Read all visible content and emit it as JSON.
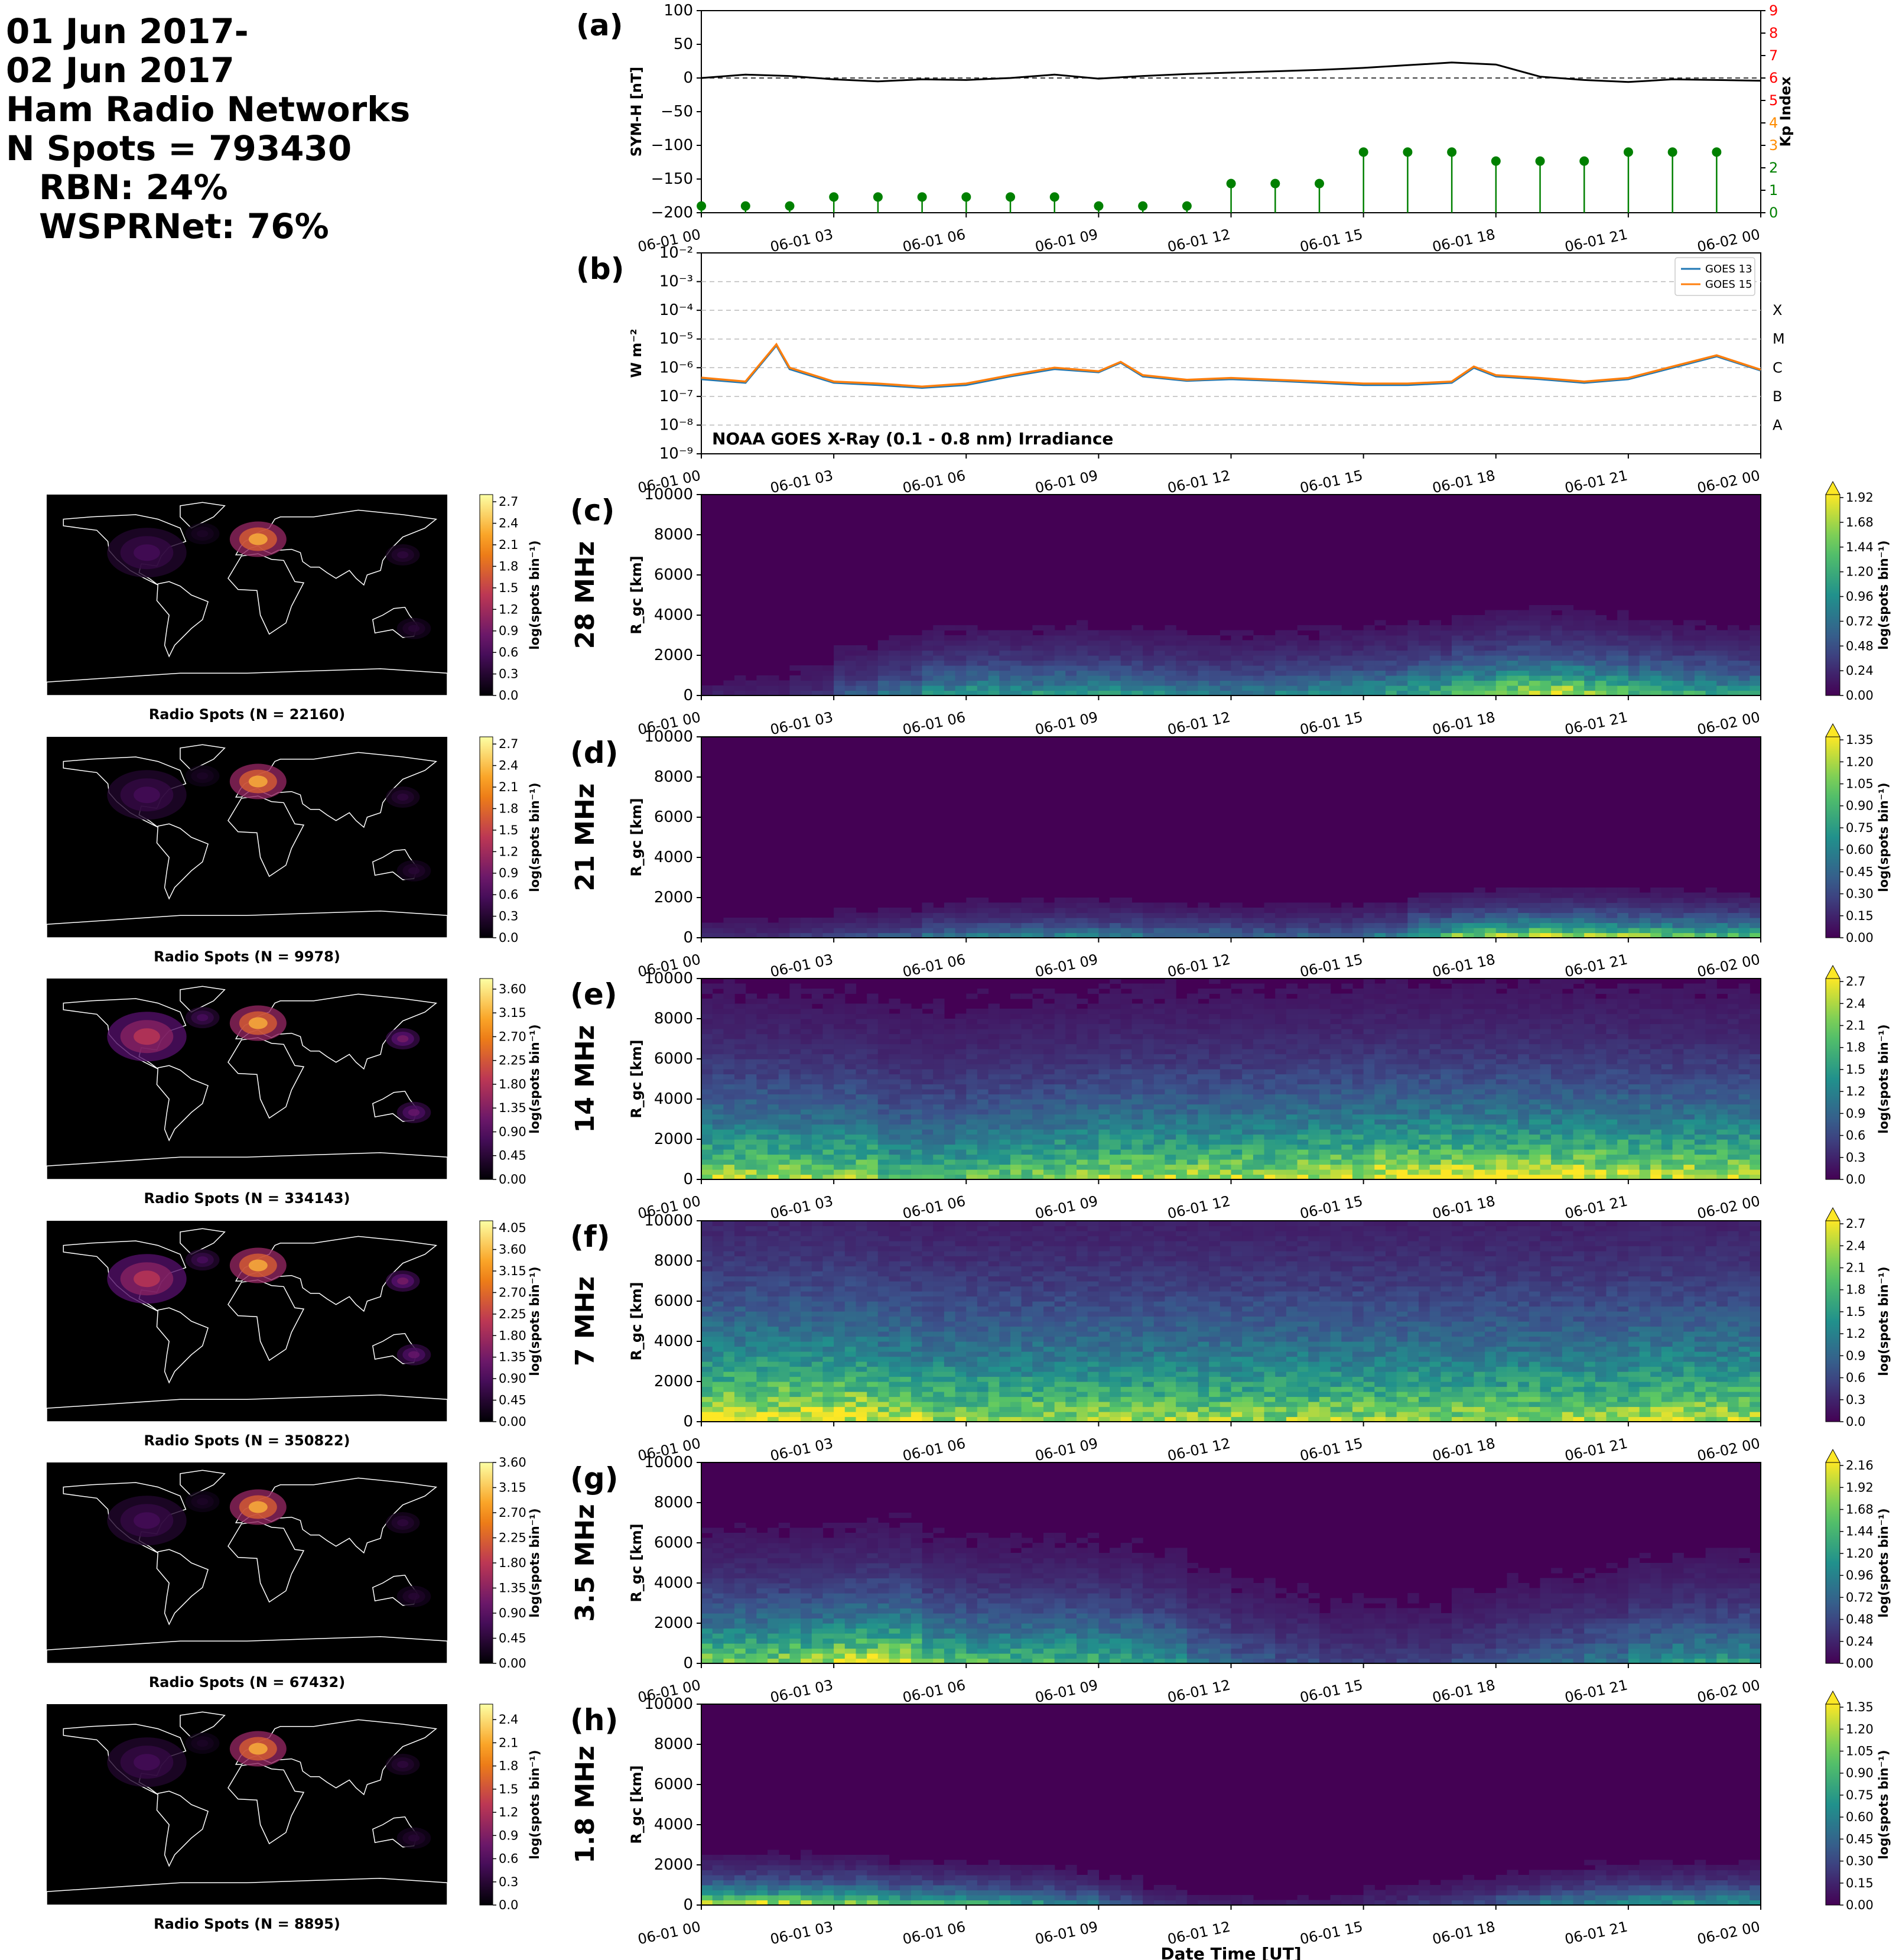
{
  "header": {
    "line1": "01 Jun 2017-",
    "line2": "02 Jun 2017",
    "line3": "Ham Radio Networks",
    "line4": "N Spots = 793430",
    "line5": "RBN: 24%",
    "line6": "WSPRNet: 76%"
  },
  "colors": {
    "symh_line": "#000000",
    "kp_stem": "#008000",
    "kp_axis": "#ff0000",
    "goes13": "#1f77b4",
    "goes15": "#ff7f0e",
    "map_bg": "#000000",
    "coast": "#ffffff"
  },
  "chart_data": [
    {
      "id": "a",
      "type": "line",
      "panel_label": "(a)",
      "xlabel": "",
      "x_ticks": [
        "06-01 00",
        "06-01 03",
        "06-01 06",
        "06-01 09",
        "06-01 12",
        "06-01 15",
        "06-01 18",
        "06-01 21",
        "06-02 00"
      ],
      "ylabel": "SYM-H [nT]",
      "ylim": [
        -200,
        100
      ],
      "y_ticks": [
        "100",
        "50",
        "0",
        "−50",
        "−100",
        "−150",
        "−200"
      ],
      "y2label": "Kp Index",
      "y2lim": [
        0,
        9
      ],
      "y2_ticks": [
        "0",
        "1",
        "2",
        "3",
        "4",
        "5",
        "6",
        "7",
        "8",
        "9"
      ],
      "series": [
        {
          "type": "line",
          "x_hours": [
            0,
            1,
            2,
            3,
            4,
            5,
            6,
            7,
            8,
            9,
            10,
            11,
            12,
            13,
            14,
            15,
            16,
            17,
            18,
            19,
            20,
            21,
            22,
            23,
            24
          ],
          "values": [
            0,
            5,
            3,
            -2,
            -5,
            -2,
            -3,
            0,
            5,
            -1,
            3,
            6,
            8,
            10,
            12,
            15,
            19,
            23,
            20,
            2,
            -3,
            -6,
            -2,
            -3,
            -4
          ]
        },
        {
          "type": "stem",
          "name": "Kp",
          "x_hours": [
            0,
            1,
            2,
            3,
            4,
            5,
            6,
            7,
            8,
            9,
            10,
            11,
            12,
            13,
            14,
            15,
            16,
            17,
            18,
            19,
            20,
            21,
            22,
            23
          ],
          "values": [
            0.3,
            0.3,
            0.3,
            0.7,
            0.7,
            0.7,
            0.7,
            0.7,
            0.7,
            0.3,
            0.3,
            0.3,
            1.3,
            1.3,
            1.3,
            2.7,
            2.7,
            2.7,
            2.3,
            2.3,
            2.3,
            2.7,
            2.7,
            2.7
          ]
        }
      ]
    },
    {
      "id": "b",
      "type": "line",
      "panel_label": "(b)",
      "x_ticks": [
        "06-01 00",
        "06-01 03",
        "06-01 06",
        "06-01 09",
        "06-01 12",
        "06-01 15",
        "06-01 18",
        "06-01 21",
        "06-02 00"
      ],
      "ylabel": "W m⁻²",
      "yscale": "log",
      "ylim": [
        1e-09,
        0.01
      ],
      "y_ticks": [
        "10⁻²",
        "10⁻³",
        "10⁻⁴",
        "10⁻⁵",
        "10⁻⁶",
        "10⁻⁷",
        "10⁻⁸",
        "10⁻⁹"
      ],
      "flare_classes": [
        "X",
        "M",
        "C",
        "B",
        "A"
      ],
      "annotation": "NOAA GOES X-Ray (0.1 - 0.8 nm) Irradiance",
      "legend_position": "top-right",
      "series": [
        {
          "name": "GOES 13",
          "x_hours": [
            0,
            1,
            1.7,
            2,
            3,
            4,
            5,
            6,
            7,
            8,
            9,
            9.5,
            10,
            11,
            12,
            13,
            14,
            15,
            16,
            17,
            17.5,
            18,
            19,
            20,
            21,
            22,
            23,
            24
          ],
          "values": [
            4e-07,
            3e-07,
            6e-06,
            9e-07,
            3e-07,
            2.5e-07,
            2e-07,
            2.5e-07,
            5e-07,
            9e-07,
            7e-07,
            1.5e-06,
            5e-07,
            3.5e-07,
            4e-07,
            3.5e-07,
            3e-07,
            2.5e-07,
            2.5e-07,
            3e-07,
            1e-06,
            5e-07,
            4e-07,
            3e-07,
            4e-07,
            1e-06,
            2.5e-06,
            8e-07
          ]
        },
        {
          "name": "GOES 15",
          "x_hours": [
            0,
            1,
            1.7,
            2,
            3,
            4,
            5,
            6,
            7,
            8,
            9,
            9.5,
            10,
            11,
            12,
            13,
            14,
            15,
            16,
            17,
            17.5,
            18,
            19,
            20,
            21,
            22,
            23,
            24
          ],
          "values": [
            4.5e-07,
            3.3e-07,
            6.5e-06,
            1e-06,
            3.3e-07,
            2.8e-07,
            2.2e-07,
            2.8e-07,
            5.5e-07,
            1e-06,
            7.5e-07,
            1.6e-06,
            5.5e-07,
            3.8e-07,
            4.4e-07,
            3.8e-07,
            3.3e-07,
            2.8e-07,
            2.8e-07,
            3.3e-07,
            1.1e-06,
            5.5e-07,
            4.4e-07,
            3.3e-07,
            4.4e-07,
            1.1e-06,
            2.7e-06,
            8.5e-07
          ]
        }
      ]
    },
    {
      "id": "c",
      "type": "heatmap",
      "panel_label": "(c)",
      "band": "28 MHz",
      "ylabel": "R_gc [km]",
      "ylim": [
        0,
        10000
      ],
      "y_ticks": [
        "0",
        "2000",
        "4000",
        "6000",
        "8000",
        "10000"
      ],
      "x_ticks": [
        "06-01 00",
        "06-01 03",
        "06-01 06",
        "06-01 09",
        "06-01 12",
        "06-01 15",
        "06-01 18",
        "06-01 21",
        "06-02 00"
      ],
      "colorbar_label": "log(spots bin⁻¹)",
      "colorbar_ticks": [
        "0.00",
        "0.24",
        "0.48",
        "0.72",
        "0.96",
        "1.20",
        "1.44",
        "1.68",
        "1.92"
      ],
      "vmax": 1.92,
      "map_caption": "Radio Spots (N = 22160)",
      "map_colorbar_ticks": [
        "0.0",
        "0.3",
        "0.6",
        "0.9",
        "1.2",
        "1.5",
        "1.8",
        "2.1",
        "2.4",
        "2.7"
      ],
      "map_vmax": 2.8,
      "activity": [
        0.1,
        0.1,
        0.15,
        0.3,
        0.4,
        0.55,
        0.6,
        0.55,
        0.6,
        0.55,
        0.5,
        0.45,
        0.45,
        0.5,
        0.55,
        0.6,
        0.7,
        0.85,
        1.0,
        1.0,
        0.9,
        0.75,
        0.65,
        0.6
      ],
      "range_scale_km": 1500,
      "spots": [
        {
          "hours": 16,
          "km": 0,
          "weight": 0
        }
      ]
    },
    {
      "id": "d",
      "type": "heatmap",
      "panel_label": "(d)",
      "band": "21 MHz",
      "ylabel": "R_gc [km]",
      "ylim": [
        0,
        10000
      ],
      "y_ticks": [
        "0",
        "2000",
        "4000",
        "6000",
        "8000",
        "10000"
      ],
      "x_ticks": [
        "06-01 00",
        "06-01 03",
        "06-01 06",
        "06-01 09",
        "06-01 12",
        "06-01 15",
        "06-01 18",
        "06-01 21",
        "06-02 00"
      ],
      "colorbar_label": "log(spots bin⁻¹)",
      "colorbar_ticks": [
        "0.00",
        "0.15",
        "0.30",
        "0.45",
        "0.60",
        "0.75",
        "0.90",
        "1.05",
        "1.20",
        "1.35"
      ],
      "vmax": 1.35,
      "map_caption": "Radio Spots (N = 9978)",
      "map_colorbar_ticks": [
        "0.0",
        "0.3",
        "0.6",
        "0.9",
        "1.2",
        "1.5",
        "1.8",
        "2.1",
        "2.4",
        "2.7"
      ],
      "map_vmax": 2.8,
      "activity": [
        0.15,
        0.15,
        0.2,
        0.25,
        0.3,
        0.4,
        0.45,
        0.45,
        0.5,
        0.45,
        0.4,
        0.4,
        0.35,
        0.35,
        0.35,
        0.45,
        0.7,
        0.9,
        1.0,
        0.95,
        0.9,
        0.85,
        0.8,
        0.75
      ],
      "range_scale_km": 900,
      "spots": []
    },
    {
      "id": "e",
      "type": "heatmap",
      "panel_label": "(e)",
      "band": "14 MHz",
      "ylabel": "R_gc [km]",
      "ylim": [
        0,
        10000
      ],
      "y_ticks": [
        "0",
        "2000",
        "4000",
        "6000",
        "8000",
        "10000"
      ],
      "x_ticks": [
        "06-01 00",
        "06-01 03",
        "06-01 06",
        "06-01 09",
        "06-01 12",
        "06-01 15",
        "06-01 18",
        "06-01 21",
        "06-02 00"
      ],
      "colorbar_label": "log(spots bin⁻¹)",
      "colorbar_ticks": [
        "0.0",
        "0.3",
        "0.6",
        "0.9",
        "1.2",
        "1.5",
        "1.8",
        "2.1",
        "2.4",
        "2.7"
      ],
      "vmax": 2.7,
      "map_caption": "Radio Spots (N = 334143)",
      "map_colorbar_ticks": [
        "0.00",
        "0.45",
        "0.90",
        "1.35",
        "1.80",
        "2.25",
        "2.70",
        "3.15",
        "3.60"
      ],
      "map_vmax": 3.8,
      "activity": [
        0.9,
        0.9,
        0.85,
        0.85,
        0.7,
        0.7,
        0.75,
        0.8,
        0.85,
        0.9,
        0.9,
        0.9,
        0.9,
        0.95,
        0.95,
        1.0,
        1.0,
        1.0,
        1.0,
        1.0,
        1.0,
        0.95,
        0.95,
        0.95
      ],
      "range_scale_km": 3500,
      "spots": []
    },
    {
      "id": "f",
      "type": "heatmap",
      "panel_label": "(f)",
      "band": "7 MHz",
      "ylabel": "R_gc [km]",
      "ylim": [
        0,
        10000
      ],
      "y_ticks": [
        "0",
        "2000",
        "4000",
        "6000",
        "8000",
        "10000"
      ],
      "x_ticks": [
        "06-01 00",
        "06-01 03",
        "06-01 06",
        "06-01 09",
        "06-01 12",
        "06-01 15",
        "06-01 18",
        "06-01 21",
        "06-02 00"
      ],
      "colorbar_label": "log(spots bin⁻¹)",
      "colorbar_ticks": [
        "0.0",
        "0.3",
        "0.6",
        "0.9",
        "1.2",
        "1.5",
        "1.8",
        "2.1",
        "2.4",
        "2.7"
      ],
      "vmax": 2.7,
      "map_caption": "Radio Spots (N = 350822)",
      "map_colorbar_ticks": [
        "0.00",
        "0.45",
        "0.90",
        "1.35",
        "1.80",
        "2.25",
        "2.70",
        "3.15",
        "3.60",
        "4.05"
      ],
      "map_vmax": 4.2,
      "activity": [
        1.0,
        1.0,
        1.0,
        1.0,
        0.9,
        0.85,
        0.85,
        0.85,
        0.85,
        0.85,
        0.85,
        0.85,
        0.85,
        0.85,
        0.85,
        0.85,
        0.85,
        0.85,
        0.85,
        0.85,
        0.85,
        0.9,
        0.9,
        0.9
      ],
      "range_scale_km": 4500,
      "spots": []
    },
    {
      "id": "g",
      "type": "heatmap",
      "panel_label": "(g)",
      "band": "3.5 MHz",
      "ylabel": "R_gc [km]",
      "ylim": [
        0,
        10000
      ],
      "y_ticks": [
        "0",
        "2000",
        "4000",
        "6000",
        "8000",
        "10000"
      ],
      "x_ticks": [
        "06-01 00",
        "06-01 03",
        "06-01 06",
        "06-01 09",
        "06-01 12",
        "06-01 15",
        "06-01 18",
        "06-01 21",
        "06-02 00"
      ],
      "colorbar_label": "log(spots bin⁻¹)",
      "colorbar_ticks": [
        "0.00",
        "0.24",
        "0.48",
        "0.72",
        "0.96",
        "1.20",
        "1.44",
        "1.68",
        "1.92",
        "2.16"
      ],
      "vmax": 2.16,
      "map_caption": "Radio Spots (N = 67432)",
      "map_colorbar_ticks": [
        "0.00",
        "0.45",
        "0.90",
        "1.35",
        "1.80",
        "2.25",
        "2.70",
        "3.15",
        "3.60"
      ],
      "map_vmax": 3.6,
      "activity": [
        0.85,
        0.85,
        0.9,
        1.0,
        1.0,
        0.75,
        0.7,
        0.7,
        0.7,
        0.65,
        0.55,
        0.4,
        0.3,
        0.25,
        0.2,
        0.2,
        0.2,
        0.25,
        0.3,
        0.35,
        0.4,
        0.5,
        0.55,
        0.55
      ],
      "range_scale_km": 2500,
      "spots": []
    },
    {
      "id": "h",
      "type": "heatmap",
      "panel_label": "(h)",
      "band": "1.8 MHz",
      "ylabel": "R_gc [km]",
      "ylim": [
        0,
        10000
      ],
      "y_ticks": [
        "0",
        "2000",
        "4000",
        "6000",
        "8000",
        "10000"
      ],
      "x_ticks": [
        "06-01 00",
        "06-01 03",
        "06-01 06",
        "06-01 09",
        "06-01 12",
        "06-01 15",
        "06-01 18",
        "06-01 21",
        "06-02 00"
      ],
      "xlabel": "Date Time [UT]",
      "colorbar_label": "log(spots bin⁻¹)",
      "colorbar_ticks": [
        "0.00",
        "0.15",
        "0.30",
        "0.45",
        "0.60",
        "0.75",
        "0.90",
        "1.05",
        "1.20",
        "1.35"
      ],
      "vmax": 1.35,
      "map_caption": "Radio Spots (N = 8895)",
      "map_colorbar_ticks": [
        "0.0",
        "0.3",
        "0.6",
        "0.9",
        "1.2",
        "1.5",
        "1.8",
        "2.1",
        "2.4"
      ],
      "map_vmax": 2.6,
      "activity": [
        1.0,
        1.0,
        0.95,
        0.95,
        0.75,
        0.7,
        0.65,
        0.55,
        0.45,
        0.3,
        0.15,
        0.1,
        0.1,
        0.1,
        0.1,
        0.15,
        0.2,
        0.25,
        0.35,
        0.45,
        0.55,
        0.6,
        0.6,
        0.6
      ],
      "range_scale_km": 900,
      "spots": []
    }
  ]
}
